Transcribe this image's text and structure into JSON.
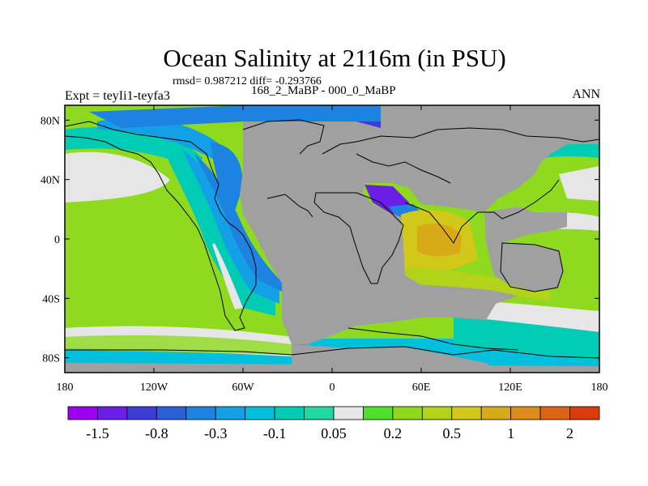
{
  "header": {
    "title": "Ocean Salinity at 2116m (in PSU)",
    "stats": "rmsd= 0.987212 diff= -0.293766",
    "expt_label": "Expt = teyIi1-teyfa3",
    "period_label": "168_2_MaBP - 000_0_MaBP",
    "season_label": "ANN"
  },
  "map": {
    "projection": "cylindrical equidistant",
    "lon_range": [
      -180,
      180
    ],
    "lat_range": [
      -90,
      90
    ],
    "lon_ticks": [
      {
        "value": -180,
        "label": "180"
      },
      {
        "value": -120,
        "label": "120W"
      },
      {
        "value": -60,
        "label": "60W"
      },
      {
        "value": 0,
        "label": "0"
      },
      {
        "value": 60,
        "label": "60E"
      },
      {
        "value": 120,
        "label": "120E"
      },
      {
        "value": 180,
        "label": "180"
      }
    ],
    "lat_ticks": [
      {
        "value": 80,
        "label": "80N"
      },
      {
        "value": 40,
        "label": "40N"
      },
      {
        "value": 0,
        "label": "0"
      },
      {
        "value": -40,
        "label": "40S"
      },
      {
        "value": -80,
        "label": "80S"
      }
    ],
    "land_color": "#a0a0a0"
  },
  "colorbar": {
    "colors": [
      "#9b00f0",
      "#6b1fe6",
      "#3c3cd9",
      "#2a5fd8",
      "#1e82e0",
      "#14a0e6",
      "#00c0dd",
      "#00cbb4",
      "#21d8a0",
      "#e6e6e6",
      "#4fe02a",
      "#90d71e",
      "#b3d21a",
      "#d2c81a",
      "#d9aa18",
      "#dc8c1a",
      "#dc6414",
      "#d93c0f"
    ],
    "labels": [
      {
        "boundary": 1,
        "text": "-1.5"
      },
      {
        "boundary": 3,
        "text": "-0.8"
      },
      {
        "boundary": 5,
        "text": "-0.3"
      },
      {
        "boundary": 7,
        "text": "-0.1"
      },
      {
        "boundary": 9,
        "text": "0.05"
      },
      {
        "boundary": 11,
        "text": "0.2"
      },
      {
        "boundary": 13,
        "text": "0.5"
      },
      {
        "boundary": 15,
        "text": "1"
      },
      {
        "boundary": 17,
        "text": "2"
      }
    ]
  }
}
